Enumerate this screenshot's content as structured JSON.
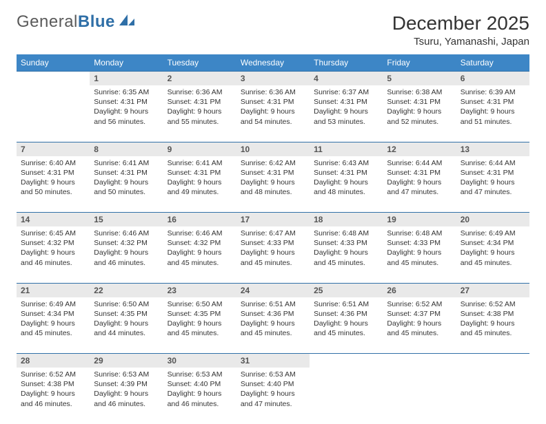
{
  "logo": {
    "part1": "General",
    "part2": "Blue"
  },
  "title": "December 2025",
  "location": "Tsuru, Yamanashi, Japan",
  "header_bg": "#3d86c6",
  "daynum_bg": "#e9e9e9",
  "rule_color": "#2f6fa7",
  "days_of_week": [
    "Sunday",
    "Monday",
    "Tuesday",
    "Wednesday",
    "Thursday",
    "Friday",
    "Saturday"
  ],
  "weeks": [
    [
      null,
      {
        "n": "1",
        "sr": "Sunrise: 6:35 AM",
        "ss": "Sunset: 4:31 PM",
        "dl": "Daylight: 9 hours and 56 minutes."
      },
      {
        "n": "2",
        "sr": "Sunrise: 6:36 AM",
        "ss": "Sunset: 4:31 PM",
        "dl": "Daylight: 9 hours and 55 minutes."
      },
      {
        "n": "3",
        "sr": "Sunrise: 6:36 AM",
        "ss": "Sunset: 4:31 PM",
        "dl": "Daylight: 9 hours and 54 minutes."
      },
      {
        "n": "4",
        "sr": "Sunrise: 6:37 AM",
        "ss": "Sunset: 4:31 PM",
        "dl": "Daylight: 9 hours and 53 minutes."
      },
      {
        "n": "5",
        "sr": "Sunrise: 6:38 AM",
        "ss": "Sunset: 4:31 PM",
        "dl": "Daylight: 9 hours and 52 minutes."
      },
      {
        "n": "6",
        "sr": "Sunrise: 6:39 AM",
        "ss": "Sunset: 4:31 PM",
        "dl": "Daylight: 9 hours and 51 minutes."
      }
    ],
    [
      {
        "n": "7",
        "sr": "Sunrise: 6:40 AM",
        "ss": "Sunset: 4:31 PM",
        "dl": "Daylight: 9 hours and 50 minutes."
      },
      {
        "n": "8",
        "sr": "Sunrise: 6:41 AM",
        "ss": "Sunset: 4:31 PM",
        "dl": "Daylight: 9 hours and 50 minutes."
      },
      {
        "n": "9",
        "sr": "Sunrise: 6:41 AM",
        "ss": "Sunset: 4:31 PM",
        "dl": "Daylight: 9 hours and 49 minutes."
      },
      {
        "n": "10",
        "sr": "Sunrise: 6:42 AM",
        "ss": "Sunset: 4:31 PM",
        "dl": "Daylight: 9 hours and 48 minutes."
      },
      {
        "n": "11",
        "sr": "Sunrise: 6:43 AM",
        "ss": "Sunset: 4:31 PM",
        "dl": "Daylight: 9 hours and 48 minutes."
      },
      {
        "n": "12",
        "sr": "Sunrise: 6:44 AM",
        "ss": "Sunset: 4:31 PM",
        "dl": "Daylight: 9 hours and 47 minutes."
      },
      {
        "n": "13",
        "sr": "Sunrise: 6:44 AM",
        "ss": "Sunset: 4:31 PM",
        "dl": "Daylight: 9 hours and 47 minutes."
      }
    ],
    [
      {
        "n": "14",
        "sr": "Sunrise: 6:45 AM",
        "ss": "Sunset: 4:32 PM",
        "dl": "Daylight: 9 hours and 46 minutes."
      },
      {
        "n": "15",
        "sr": "Sunrise: 6:46 AM",
        "ss": "Sunset: 4:32 PM",
        "dl": "Daylight: 9 hours and 46 minutes."
      },
      {
        "n": "16",
        "sr": "Sunrise: 6:46 AM",
        "ss": "Sunset: 4:32 PM",
        "dl": "Daylight: 9 hours and 45 minutes."
      },
      {
        "n": "17",
        "sr": "Sunrise: 6:47 AM",
        "ss": "Sunset: 4:33 PM",
        "dl": "Daylight: 9 hours and 45 minutes."
      },
      {
        "n": "18",
        "sr": "Sunrise: 6:48 AM",
        "ss": "Sunset: 4:33 PM",
        "dl": "Daylight: 9 hours and 45 minutes."
      },
      {
        "n": "19",
        "sr": "Sunrise: 6:48 AM",
        "ss": "Sunset: 4:33 PM",
        "dl": "Daylight: 9 hours and 45 minutes."
      },
      {
        "n": "20",
        "sr": "Sunrise: 6:49 AM",
        "ss": "Sunset: 4:34 PM",
        "dl": "Daylight: 9 hours and 45 minutes."
      }
    ],
    [
      {
        "n": "21",
        "sr": "Sunrise: 6:49 AM",
        "ss": "Sunset: 4:34 PM",
        "dl": "Daylight: 9 hours and 45 minutes."
      },
      {
        "n": "22",
        "sr": "Sunrise: 6:50 AM",
        "ss": "Sunset: 4:35 PM",
        "dl": "Daylight: 9 hours and 44 minutes."
      },
      {
        "n": "23",
        "sr": "Sunrise: 6:50 AM",
        "ss": "Sunset: 4:35 PM",
        "dl": "Daylight: 9 hours and 45 minutes."
      },
      {
        "n": "24",
        "sr": "Sunrise: 6:51 AM",
        "ss": "Sunset: 4:36 PM",
        "dl": "Daylight: 9 hours and 45 minutes."
      },
      {
        "n": "25",
        "sr": "Sunrise: 6:51 AM",
        "ss": "Sunset: 4:36 PM",
        "dl": "Daylight: 9 hours and 45 minutes."
      },
      {
        "n": "26",
        "sr": "Sunrise: 6:52 AM",
        "ss": "Sunset: 4:37 PM",
        "dl": "Daylight: 9 hours and 45 minutes."
      },
      {
        "n": "27",
        "sr": "Sunrise: 6:52 AM",
        "ss": "Sunset: 4:38 PM",
        "dl": "Daylight: 9 hours and 45 minutes."
      }
    ],
    [
      {
        "n": "28",
        "sr": "Sunrise: 6:52 AM",
        "ss": "Sunset: 4:38 PM",
        "dl": "Daylight: 9 hours and 46 minutes."
      },
      {
        "n": "29",
        "sr": "Sunrise: 6:53 AM",
        "ss": "Sunset: 4:39 PM",
        "dl": "Daylight: 9 hours and 46 minutes."
      },
      {
        "n": "30",
        "sr": "Sunrise: 6:53 AM",
        "ss": "Sunset: 4:40 PM",
        "dl": "Daylight: 9 hours and 46 minutes."
      },
      {
        "n": "31",
        "sr": "Sunrise: 6:53 AM",
        "ss": "Sunset: 4:40 PM",
        "dl": "Daylight: 9 hours and 47 minutes."
      },
      null,
      null,
      null
    ]
  ]
}
